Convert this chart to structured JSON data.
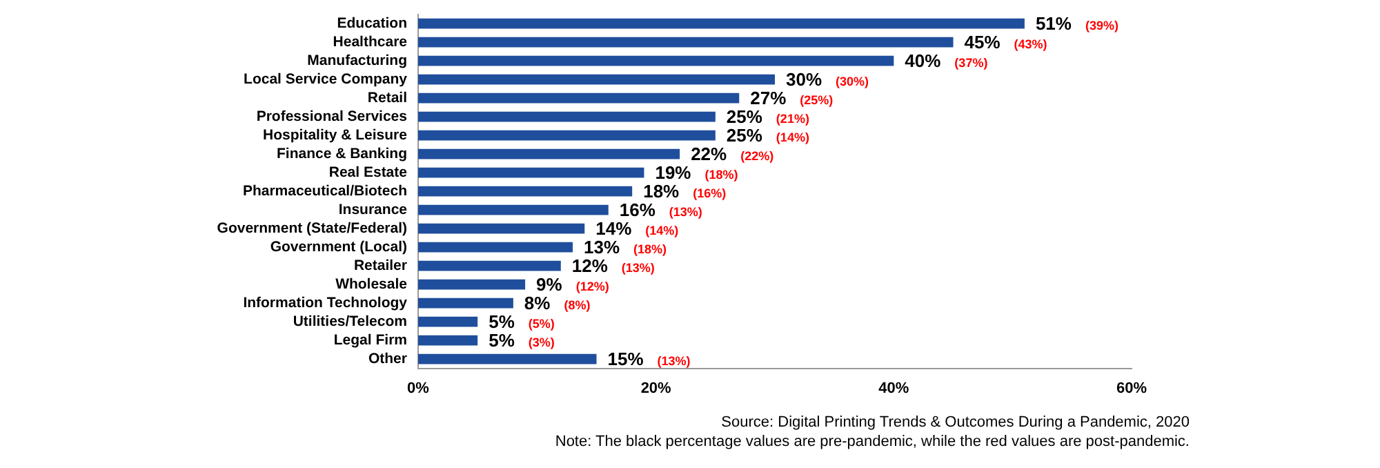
{
  "chart_data": {
    "type": "bar",
    "orientation": "horizontal",
    "color": "#1f4e9c",
    "categories": [
      "Education",
      "Healthcare",
      "Manufacturing",
      "Local Service Company",
      "Retail",
      "Professional Services",
      "Hospitality & Leisure",
      "Finance & Banking",
      "Real Estate",
      "Pharmaceutical/Biotech",
      "Insurance",
      "Government (State/Federal)",
      "Government (Local)",
      "Retailer",
      "Wholesale",
      "Information Technology",
      "Utilities/Telecom",
      "Legal Firm",
      "Other"
    ],
    "values": [
      51,
      45,
      40,
      30,
      27,
      25,
      25,
      22,
      19,
      18,
      16,
      14,
      13,
      12,
      9,
      8,
      5,
      5,
      15
    ],
    "value_labels": [
      "51%",
      "45%",
      "40%",
      "30%",
      "27%",
      "25%",
      "25%",
      "22%",
      "19%",
      "18%",
      "16%",
      "14%",
      "13%",
      "12%",
      "9%",
      "8%",
      "5%",
      "5%",
      "15%"
    ],
    "xlim": [
      0,
      60
    ],
    "xticks": [
      {
        "value": 0,
        "label": "0%"
      },
      {
        "value": 20,
        "label": "20%"
      },
      {
        "value": 40,
        "label": "40%"
      },
      {
        "value": 60,
        "label": "60%"
      }
    ],
    "grid": false,
    "legend": false,
    "annotations": [
      "(39%)",
      "(43%)",
      "(37%)",
      "(30%)",
      "(25%)",
      "(21%)",
      "(14%)",
      "(22%)",
      "(18%)",
      "(16%)",
      "(13%)",
      "(14%)",
      "(18%)",
      "(13%)",
      "(12%)",
      "(8%)",
      "(5%)",
      "(3%)",
      "(13%)",
      "Source: Digital Printing Trends & Outcomes During a Pandemic, 2020",
      "Note: The black percentage values are pre-pandemic, while the red values are post-pandemic."
    ]
  }
}
